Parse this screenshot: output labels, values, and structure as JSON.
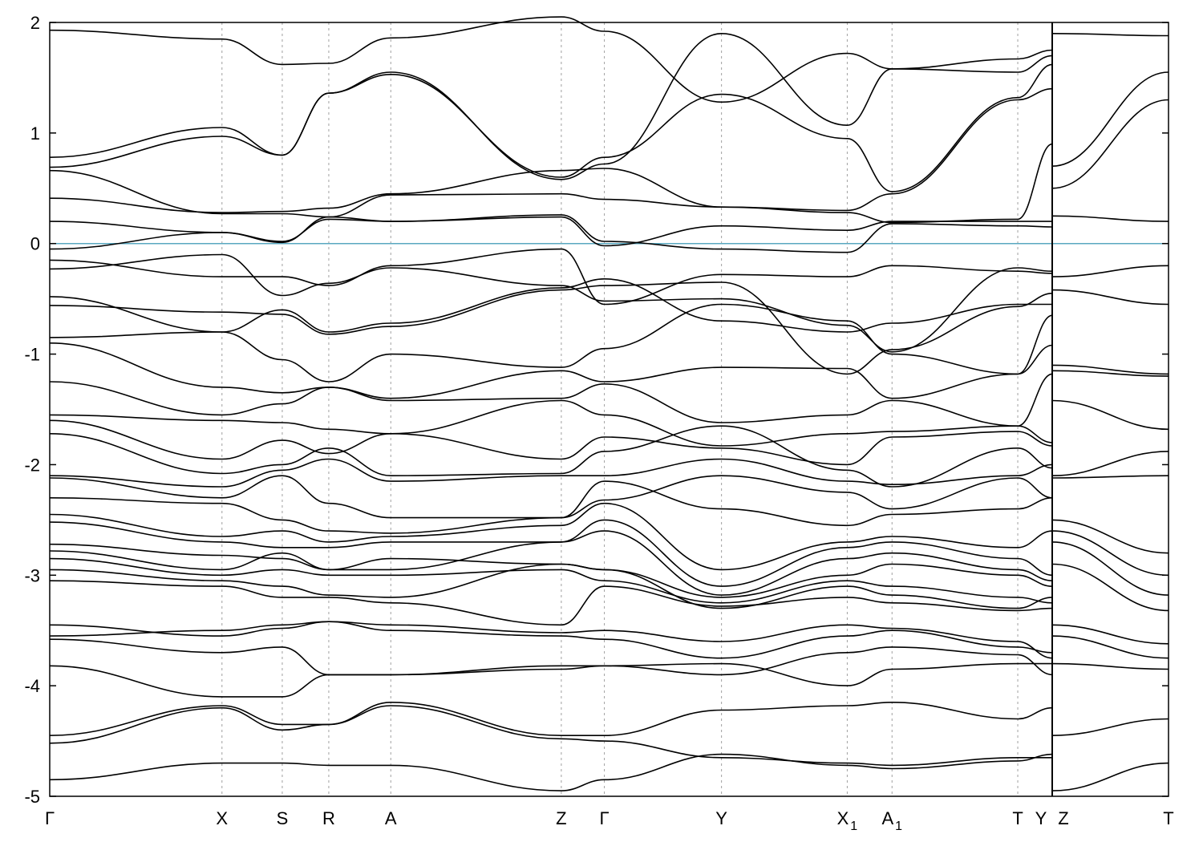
{
  "chart_data": {
    "type": "line",
    "title": "",
    "xlabel": "",
    "ylabel": "",
    "ylim": [
      -5,
      2
    ],
    "yticks": [
      2,
      1,
      0,
      -1,
      -2,
      -3,
      -4,
      -5
    ],
    "ytick_labels": [
      "2",
      "1",
      "0",
      "-1",
      "-2",
      "-3",
      "-4",
      "-5"
    ],
    "fermi_level": 0,
    "grid": "dashed vertical lines at high-symmetry points",
    "colors": {
      "bands": "#000000",
      "fermi": "#5aa8c0",
      "grid": "#a0a0a0"
    },
    "path_segments": [
      {
        "kpoints": [
          "Γ",
          "X",
          "S",
          "R",
          "A",
          "Z",
          "Γ",
          "Y",
          "X1",
          "A1",
          "T",
          "Y"
        ],
        "x": [
          0,
          1,
          1.35,
          1.62,
          1.98,
          2.97,
          3.22,
          3.9,
          4.63,
          4.89,
          5.62,
          5.82
        ]
      },
      {
        "kpoints": [
          "Z",
          "T"
        ],
        "x": [
          5.82,
          6.5
        ]
      }
    ],
    "kpoint_labels": [
      {
        "base": "Γ",
        "sub": ""
      },
      {
        "base": "X",
        "sub": ""
      },
      {
        "base": "S",
        "sub": ""
      },
      {
        "base": "R",
        "sub": ""
      },
      {
        "base": "A",
        "sub": ""
      },
      {
        "base": "Z",
        "sub": ""
      },
      {
        "base": "Γ",
        "sub": ""
      },
      {
        "base": "Y",
        "sub": ""
      },
      {
        "base": "X",
        "sub": "1"
      },
      {
        "base": "A",
        "sub": "1"
      },
      {
        "base": "T",
        "sub": ""
      },
      {
        "base": "Y",
        "sub": ""
      },
      {
        "base": "Z",
        "sub": ""
      },
      {
        "base": "T",
        "sub": ""
      }
    ],
    "series": [
      {
        "segment": 0,
        "values": [
          1.93,
          1.85,
          1.62,
          1.63,
          1.86,
          2.05,
          1.92,
          1.28,
          1.72,
          1.58,
          1.67,
          1.75
        ]
      },
      {
        "segment": 0,
        "values": [
          0.78,
          1.05,
          0.8,
          1.36,
          1.55,
          0.58,
          0.72,
          1.9,
          1.07,
          1.58,
          1.55,
          1.7
        ]
      },
      {
        "segment": 0,
        "values": [
          0.69,
          0.97,
          0.8,
          1.36,
          1.53,
          0.6,
          0.78,
          1.35,
          0.95,
          0.47,
          1.32,
          1.62
        ]
      },
      {
        "segment": 0,
        "values": [
          0.66,
          0.27,
          0.27,
          0.24,
          0.44,
          0.45,
          0.4,
          0.33,
          0.3,
          0.45,
          1.3,
          1.4
        ]
      },
      {
        "segment": 0,
        "values": [
          0.41,
          0.28,
          0.29,
          0.32,
          0.45,
          0.66,
          0.68,
          0.33,
          0.28,
          0.19,
          0.22,
          0.9
        ]
      },
      {
        "segment": 0,
        "values": [
          0.2,
          0.1,
          0.02,
          0.22,
          0.2,
          0.24,
          -0.02,
          0.16,
          0.12,
          0.2,
          0.2,
          0.2
        ]
      },
      {
        "segment": 0,
        "values": [
          -0.05,
          0.1,
          0.01,
          0.24,
          0.2,
          0.26,
          0.02,
          -0.05,
          -0.08,
          0.18,
          0.16,
          0.15
        ]
      },
      {
        "segment": 0,
        "values": [
          -0.15,
          -0.3,
          -0.3,
          -0.38,
          -0.2,
          -0.05,
          -0.55,
          -0.28,
          -0.3,
          -0.2,
          -0.25,
          -0.27
        ]
      },
      {
        "segment": 0,
        "values": [
          -0.23,
          -0.1,
          -0.47,
          -0.36,
          -0.22,
          -0.38,
          -0.52,
          -0.5,
          -0.74,
          -0.98,
          -0.22,
          -0.25
        ]
      },
      {
        "segment": 0,
        "values": [
          -0.48,
          -0.8,
          -0.6,
          -0.8,
          -0.72,
          -0.4,
          -0.32,
          -0.7,
          -0.8,
          -0.72,
          -0.55,
          -0.55
        ]
      },
      {
        "segment": 0,
        "values": [
          -0.56,
          -0.62,
          -0.64,
          -0.82,
          -0.75,
          -0.42,
          -0.38,
          -0.35,
          -1.18,
          -0.96,
          -0.57,
          -0.45
        ]
      },
      {
        "segment": 0,
        "values": [
          -0.85,
          -0.8,
          -1.05,
          -1.25,
          -1.0,
          -1.12,
          -0.95,
          -0.55,
          -0.7,
          -1.0,
          -1.18,
          -0.65
        ]
      },
      {
        "segment": 0,
        "values": [
          -0.9,
          -1.3,
          -1.35,
          -1.3,
          -1.4,
          -1.15,
          -1.25,
          -1.12,
          -1.13,
          -1.4,
          -1.18,
          -0.92
        ]
      },
      {
        "segment": 0,
        "values": [
          -1.25,
          -1.55,
          -1.45,
          -1.3,
          -1.42,
          -1.4,
          -1.27,
          -1.62,
          -1.55,
          -1.42,
          -1.65,
          -1.18
        ]
      },
      {
        "segment": 0,
        "values": [
          -1.55,
          -1.6,
          -1.62,
          -1.68,
          -1.72,
          -1.42,
          -1.55,
          -1.83,
          -1.72,
          -1.7,
          -1.65,
          -1.8
        ]
      },
      {
        "segment": 0,
        "values": [
          -1.6,
          -1.95,
          -1.78,
          -1.9,
          -1.72,
          -1.95,
          -1.75,
          -1.85,
          -2.0,
          -1.75,
          -1.7,
          -1.83
        ]
      },
      {
        "segment": 0,
        "values": [
          -1.72,
          -2.08,
          -2.0,
          -1.85,
          -2.1,
          -2.08,
          -1.88,
          -1.65,
          -2.05,
          -2.2,
          -1.85,
          -2.03
        ]
      },
      {
        "segment": 0,
        "values": [
          -2.1,
          -2.2,
          -2.05,
          -1.95,
          -2.15,
          -2.1,
          -2.1,
          -1.95,
          -2.15,
          -2.18,
          -2.1,
          -2.0
        ]
      },
      {
        "segment": 0,
        "values": [
          -2.12,
          -2.3,
          -2.1,
          -2.35,
          -2.48,
          -2.48,
          -2.32,
          -2.1,
          -2.25,
          -2.4,
          -2.12,
          -2.3
        ]
      },
      {
        "segment": 0,
        "values": [
          -2.3,
          -2.35,
          -2.5,
          -2.6,
          -2.62,
          -2.48,
          -2.15,
          -2.4,
          -2.55,
          -2.45,
          -2.4,
          -2.3
        ]
      },
      {
        "segment": 0,
        "values": [
          -2.45,
          -2.65,
          -2.6,
          -2.7,
          -2.65,
          -2.55,
          -2.35,
          -2.95,
          -2.7,
          -2.65,
          -2.75,
          -2.6
        ]
      },
      {
        "segment": 0,
        "values": [
          -2.52,
          -2.7,
          -2.75,
          -2.75,
          -2.7,
          -2.7,
          -2.5,
          -3.1,
          -2.75,
          -2.7,
          -2.85,
          -3.0
        ]
      },
      {
        "segment": 0,
        "values": [
          -2.72,
          -2.82,
          -2.85,
          -2.95,
          -2.95,
          -2.7,
          -2.6,
          -3.18,
          -2.85,
          -2.8,
          -2.95,
          -3.05
        ]
      },
      {
        "segment": 0,
        "values": [
          -2.78,
          -2.95,
          -2.8,
          -2.95,
          -2.85,
          -2.9,
          -2.95,
          -3.2,
          -3.0,
          -2.9,
          -3.0,
          -3.1
        ]
      },
      {
        "segment": 0,
        "values": [
          -2.85,
          -3.0,
          -2.95,
          -3.0,
          -3.0,
          -2.95,
          -3.05,
          -3.25,
          -3.05,
          -3.1,
          -3.2,
          -3.25
        ]
      },
      {
        "segment": 0,
        "values": [
          -2.95,
          -3.05,
          -3.1,
          -3.18,
          -3.2,
          -2.9,
          -2.95,
          -3.3,
          -3.1,
          -3.18,
          -3.3,
          -3.2
        ]
      },
      {
        "segment": 0,
        "values": [
          -3.05,
          -3.1,
          -3.2,
          -3.2,
          -3.25,
          -3.45,
          -3.1,
          -3.28,
          -3.2,
          -3.25,
          -3.32,
          -3.3
        ]
      },
      {
        "segment": 0,
        "values": [
          -3.45,
          -3.55,
          -3.48,
          -3.42,
          -3.45,
          -3.52,
          -3.5,
          -3.6,
          -3.45,
          -3.48,
          -3.6,
          -3.75
        ]
      },
      {
        "segment": 0,
        "values": [
          -3.55,
          -3.5,
          -3.45,
          -3.42,
          -3.5,
          -3.55,
          -3.58,
          -3.75,
          -3.55,
          -3.5,
          -3.65,
          -3.7
        ]
      },
      {
        "segment": 0,
        "values": [
          -3.58,
          -3.7,
          -3.65,
          -3.9,
          -3.9,
          -3.82,
          -3.82,
          -3.9,
          -3.7,
          -3.65,
          -3.72,
          -3.9
        ]
      },
      {
        "segment": 0,
        "values": [
          -3.82,
          -4.1,
          -4.1,
          -3.9,
          -3.9,
          -3.85,
          -3.82,
          -3.8,
          -4.0,
          -3.85,
          -3.8,
          -3.8
        ]
      },
      {
        "segment": 0,
        "values": [
          -4.45,
          -4.18,
          -4.35,
          -4.35,
          -4.15,
          -4.45,
          -4.45,
          -4.22,
          -4.18,
          -4.15,
          -4.3,
          -4.2
        ]
      },
      {
        "segment": 0,
        "values": [
          -4.52,
          -4.2,
          -4.4,
          -4.35,
          -4.18,
          -4.48,
          -4.5,
          -4.65,
          -4.7,
          -4.72,
          -4.65,
          -4.65
        ]
      },
      {
        "segment": 0,
        "values": [
          -4.85,
          -4.7,
          -4.7,
          -4.72,
          -4.72,
          -4.95,
          -4.85,
          -4.62,
          -4.72,
          -4.75,
          -4.68,
          -4.62
        ]
      },
      {
        "segment": 1,
        "values": [
          1.9,
          1.88
        ]
      },
      {
        "segment": 1,
        "values": [
          0.7,
          1.55
        ]
      },
      {
        "segment": 1,
        "values": [
          0.5,
          1.3
        ]
      },
      {
        "segment": 1,
        "values": [
          0.25,
          0.2
        ]
      },
      {
        "segment": 1,
        "values": [
          -0.3,
          -0.2
        ]
      },
      {
        "segment": 1,
        "values": [
          -0.42,
          -0.55
        ]
      },
      {
        "segment": 1,
        "values": [
          -1.1,
          -1.18
        ]
      },
      {
        "segment": 1,
        "values": [
          -1.15,
          -1.2
        ]
      },
      {
        "segment": 1,
        "values": [
          -1.42,
          -1.68
        ]
      },
      {
        "segment": 1,
        "values": [
          -2.1,
          -1.88
        ]
      },
      {
        "segment": 1,
        "values": [
          -2.12,
          -2.1
        ]
      },
      {
        "segment": 1,
        "values": [
          -2.5,
          -2.8
        ]
      },
      {
        "segment": 1,
        "values": [
          -2.6,
          -3.0
        ]
      },
      {
        "segment": 1,
        "values": [
          -2.7,
          -3.18
        ]
      },
      {
        "segment": 1,
        "values": [
          -2.9,
          -3.32
        ]
      },
      {
        "segment": 1,
        "values": [
          -3.45,
          -3.62
        ]
      },
      {
        "segment": 1,
        "values": [
          -3.55,
          -3.75
        ]
      },
      {
        "segment": 1,
        "values": [
          -3.8,
          -3.85
        ]
      },
      {
        "segment": 1,
        "values": [
          -4.45,
          -4.3
        ]
      },
      {
        "segment": 1,
        "values": [
          -4.95,
          -4.7
        ]
      }
    ]
  }
}
